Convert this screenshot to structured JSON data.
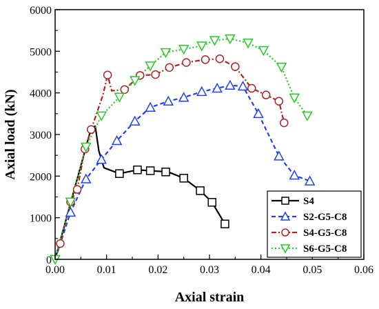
{
  "chart_data": {
    "type": "line",
    "xlabel": "Axial strain",
    "ylabel": "Axial load (kN)",
    "xlim": [
      0.0,
      0.06
    ],
    "ylim": [
      0,
      6000
    ],
    "xticks": [
      "0.00",
      "0.01",
      "0.02",
      "0.03",
      "0.04",
      "0.05",
      "0.06"
    ],
    "yticks": [
      "0",
      "1000",
      "2000",
      "3000",
      "4000",
      "5000",
      "6000"
    ],
    "legend_position": "bottom-right",
    "grid": false,
    "series": [
      {
        "name": "S4",
        "color": "#000000",
        "line_style": "solid",
        "marker": "square",
        "points": [
          [
            0.0,
            0
          ],
          [
            0.007,
            3150
          ],
          [
            0.0078,
            3200
          ],
          [
            0.0085,
            2600
          ],
          [
            0.0095,
            2200
          ],
          [
            0.0125,
            2060
          ],
          [
            0.016,
            2150
          ],
          [
            0.0185,
            2130
          ],
          [
            0.022,
            2100
          ],
          [
            0.025,
            1950
          ],
          [
            0.0282,
            1650
          ],
          [
            0.0305,
            1370
          ],
          [
            0.033,
            850
          ]
        ],
        "marker_points": [
          [
            0.0125,
            2060
          ],
          [
            0.016,
            2150
          ],
          [
            0.0185,
            2130
          ],
          [
            0.0215,
            2100
          ],
          [
            0.025,
            1950
          ],
          [
            0.0282,
            1650
          ],
          [
            0.0305,
            1370
          ],
          [
            0.033,
            850
          ]
        ]
      },
      {
        "name": "S2-G5-C8",
        "color": "#1f3fff",
        "line_style": "dashed",
        "marker": "triangle-up",
        "points": [
          [
            0.0,
            0
          ],
          [
            0.003,
            1130
          ],
          [
            0.006,
            1930
          ],
          [
            0.009,
            2400
          ],
          [
            0.012,
            2850
          ],
          [
            0.0155,
            3320
          ],
          [
            0.0185,
            3650
          ],
          [
            0.022,
            3800
          ],
          [
            0.025,
            3890
          ],
          [
            0.0285,
            4030
          ],
          [
            0.0315,
            4110
          ],
          [
            0.034,
            4180
          ],
          [
            0.0365,
            4160
          ],
          [
            0.0395,
            3500
          ],
          [
            0.0435,
            2480
          ],
          [
            0.0465,
            2020
          ],
          [
            0.0495,
            1880
          ]
        ],
        "marker_points": [
          [
            0.003,
            1130
          ],
          [
            0.006,
            1930
          ],
          [
            0.009,
            2400
          ],
          [
            0.012,
            2850
          ],
          [
            0.0155,
            3320
          ],
          [
            0.0185,
            3650
          ],
          [
            0.022,
            3800
          ],
          [
            0.025,
            3890
          ],
          [
            0.0285,
            4030
          ],
          [
            0.0315,
            4110
          ],
          [
            0.034,
            4180
          ],
          [
            0.0365,
            4160
          ],
          [
            0.0395,
            3500
          ],
          [
            0.0435,
            2480
          ],
          [
            0.0465,
            2020
          ],
          [
            0.0495,
            1880
          ]
        ]
      },
      {
        "name": "S4-G5-C8",
        "color": "#b22222",
        "line_style": "dash-dot",
        "marker": "circle",
        "points": [
          [
            0.0,
            0
          ],
          [
            0.001,
            380
          ],
          [
            0.003,
            1380
          ],
          [
            0.0043,
            1680
          ],
          [
            0.0058,
            2650
          ],
          [
            0.007,
            3120
          ],
          [
            0.0093,
            3950
          ],
          [
            0.0102,
            4430
          ],
          [
            0.011,
            4050
          ],
          [
            0.0135,
            4080
          ],
          [
            0.0165,
            4420
          ],
          [
            0.0195,
            4440
          ],
          [
            0.0222,
            4610
          ],
          [
            0.0255,
            4730
          ],
          [
            0.0292,
            4800
          ],
          [
            0.032,
            4820
          ],
          [
            0.035,
            4630
          ],
          [
            0.0382,
            4110
          ],
          [
            0.041,
            3950
          ],
          [
            0.0435,
            3800
          ],
          [
            0.0445,
            3280
          ]
        ],
        "marker_points": [
          [
            0.001,
            380
          ],
          [
            0.003,
            1380
          ],
          [
            0.0043,
            1680
          ],
          [
            0.0058,
            2650
          ],
          [
            0.007,
            3120
          ],
          [
            0.0102,
            4430
          ],
          [
            0.0135,
            4080
          ],
          [
            0.0165,
            4420
          ],
          [
            0.0195,
            4440
          ],
          [
            0.0222,
            4610
          ],
          [
            0.0255,
            4730
          ],
          [
            0.0292,
            4800
          ],
          [
            0.032,
            4820
          ],
          [
            0.035,
            4630
          ],
          [
            0.0382,
            4110
          ],
          [
            0.041,
            3950
          ],
          [
            0.0435,
            3800
          ],
          [
            0.0445,
            3280
          ]
        ]
      },
      {
        "name": "S6-G5-C8",
        "color": "#22cc22",
        "line_style": "dotted",
        "marker": "triangle-down",
        "points": [
          [
            0.0,
            0
          ],
          [
            0.003,
            1380
          ],
          [
            0.006,
            2700
          ],
          [
            0.009,
            3450
          ],
          [
            0.0125,
            3900
          ],
          [
            0.0155,
            4300
          ],
          [
            0.0185,
            4650
          ],
          [
            0.0215,
            4970
          ],
          [
            0.025,
            5050
          ],
          [
            0.0285,
            5130
          ],
          [
            0.031,
            5260
          ],
          [
            0.034,
            5300
          ],
          [
            0.0375,
            5200
          ],
          [
            0.0405,
            5020
          ],
          [
            0.044,
            4620
          ],
          [
            0.0465,
            3880
          ],
          [
            0.049,
            3450
          ]
        ],
        "marker_points": [
          [
            0.0,
            0
          ],
          [
            0.003,
            1380
          ],
          [
            0.006,
            2700
          ],
          [
            0.009,
            3450
          ],
          [
            0.0125,
            3900
          ],
          [
            0.0155,
            4300
          ],
          [
            0.0185,
            4650
          ],
          [
            0.0215,
            4970
          ],
          [
            0.025,
            5050
          ],
          [
            0.0285,
            5130
          ],
          [
            0.031,
            5260
          ],
          [
            0.034,
            5300
          ],
          [
            0.0375,
            5200
          ],
          [
            0.0405,
            5020
          ],
          [
            0.044,
            4620
          ],
          [
            0.0465,
            3880
          ],
          [
            0.049,
            3450
          ]
        ]
      }
    ]
  }
}
